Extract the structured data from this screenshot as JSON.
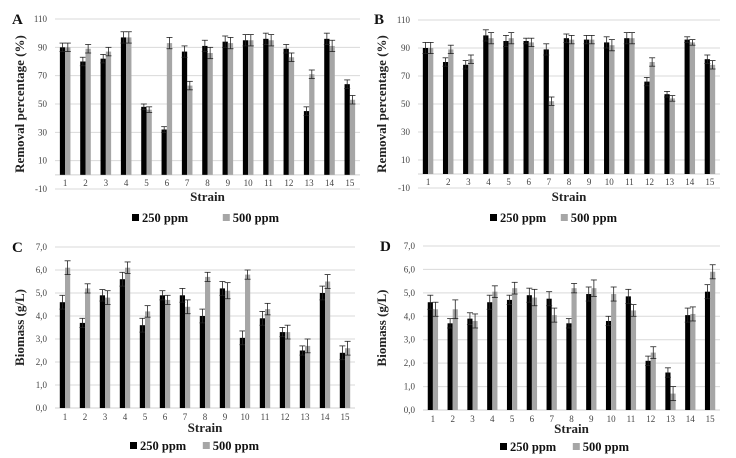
{
  "figure": {
    "legend": [
      {
        "name": "250 ppm",
        "color": "#000000"
      },
      {
        "name": "500 ppm",
        "color": "#a6a6a6"
      }
    ],
    "gridline_color": "#d9d9d9",
    "errorbar_color": "#222222"
  },
  "chart_data": [
    {
      "panel": "A",
      "type": "bar",
      "title": "",
      "xlabel": "Strain",
      "ylabel": "Removal percentage (%)",
      "ylim": [
        -10,
        110
      ],
      "yticks": [
        "-10",
        "10",
        "30",
        "50",
        "70",
        "90",
        "110"
      ],
      "grid": true,
      "legend_position": "bottom",
      "categories": [
        "1",
        "2",
        "3",
        "4",
        "5",
        "6",
        "7",
        "8",
        "9",
        "10",
        "11",
        "12",
        "13",
        "14",
        "15"
      ],
      "series": [
        {
          "name": "250 ppm",
          "values": [
            90,
            80,
            82,
            97,
            48,
            32,
            87,
            91,
            94,
            95,
            96,
            89,
            45,
            96,
            64
          ],
          "errors": [
            3,
            3,
            3,
            4,
            2,
            2,
            4,
            4,
            4,
            4,
            4,
            3,
            3,
            4,
            3
          ]
        },
        {
          "name": "500 ppm",
          "values": [
            90,
            89,
            87,
            97,
            46,
            93,
            63,
            86,
            93,
            95,
            95,
            83,
            71,
            91,
            53
          ],
          "errors": [
            3,
            3,
            3,
            4,
            2,
            4,
            3,
            4,
            4,
            4,
            4,
            3,
            3,
            4,
            3
          ]
        }
      ]
    },
    {
      "panel": "B",
      "type": "bar",
      "title": "",
      "xlabel": "Strain",
      "ylabel": "Removal percentage (%)",
      "ylim": [
        -10,
        110
      ],
      "yticks": [
        "-10",
        "10",
        "30",
        "50",
        "70",
        "90",
        "110"
      ],
      "grid": true,
      "legend_position": "bottom",
      "categories": [
        "1",
        "2",
        "3",
        "4",
        "5",
        "6",
        "7",
        "8",
        "9",
        "10",
        "11",
        "12",
        "13",
        "14",
        "15"
      ],
      "series": [
        {
          "name": "250 ppm",
          "values": [
            90,
            80,
            78,
            99,
            95,
            95,
            89,
            97,
            96,
            94,
            97,
            66,
            57,
            96,
            82
          ],
          "errors": [
            4,
            3,
            3,
            4,
            4,
            2,
            4,
            3,
            3,
            4,
            4,
            3,
            2,
            2,
            3
          ]
        },
        {
          "name": "500 ppm",
          "values": [
            90,
            89,
            82,
            97,
            97,
            94,
            52,
            96,
            96,
            92,
            97,
            80,
            54,
            94,
            78
          ],
          "errors": [
            4,
            3,
            3,
            4,
            4,
            3,
            3,
            3,
            3,
            4,
            4,
            3,
            2,
            2,
            3
          ]
        }
      ]
    },
    {
      "panel": "C",
      "type": "bar",
      "title": "",
      "xlabel": "Strain",
      "ylabel": "Biomass (g/L)",
      "ylim": [
        0,
        7
      ],
      "yticks": [
        "0,0",
        "1,0",
        "2,0",
        "3,0",
        "4,0",
        "5,0",
        "6,0",
        "7,0"
      ],
      "grid": true,
      "legend_position": "bottom",
      "categories": [
        "1",
        "2",
        "3",
        "4",
        "5",
        "6",
        "7",
        "8",
        "9",
        "10",
        "11",
        "12",
        "13",
        "14",
        "15"
      ],
      "series": [
        {
          "name": "250 ppm",
          "values": [
            4.6,
            3.7,
            4.9,
            5.6,
            3.6,
            4.9,
            4.9,
            4.0,
            5.2,
            3.05,
            3.9,
            3.3,
            2.5,
            5.0,
            2.4
          ],
          "errors": [
            0.3,
            0.2,
            0.25,
            0.3,
            0.3,
            0.2,
            0.3,
            0.3,
            0.3,
            0.3,
            0.3,
            0.2,
            0.2,
            0.3,
            0.3
          ]
        },
        {
          "name": "500 ppm",
          "values": [
            6.1,
            5.2,
            4.8,
            6.1,
            4.2,
            4.7,
            4.4,
            5.7,
            5.1,
            5.8,
            4.3,
            3.3,
            2.7,
            5.5,
            2.6
          ],
          "errors": [
            0.3,
            0.2,
            0.3,
            0.25,
            0.25,
            0.2,
            0.3,
            0.2,
            0.35,
            0.2,
            0.25,
            0.3,
            0.3,
            0.3,
            0.3
          ]
        }
      ]
    },
    {
      "panel": "D",
      "type": "bar",
      "title": "",
      "xlabel": "Strain",
      "ylabel": "Biomass (g/L)",
      "ylim": [
        0,
        7
      ],
      "yticks": [
        "0,0",
        "1,0",
        "2,0",
        "3,0",
        "4,0",
        "5,0",
        "6,0",
        "7,0"
      ],
      "grid": true,
      "legend_position": "bottom",
      "categories": [
        "1",
        "2",
        "3",
        "4",
        "5",
        "6",
        "7",
        "8",
        "9",
        "10",
        "11",
        "12",
        "13",
        "14",
        "15"
      ],
      "series": [
        {
          "name": "250 ppm",
          "values": [
            4.6,
            3.7,
            3.9,
            4.6,
            4.7,
            4.9,
            4.75,
            3.7,
            4.95,
            3.8,
            4.85,
            2.1,
            1.6,
            4.05,
            5.05
          ],
          "errors": [
            0.3,
            0.2,
            0.25,
            0.3,
            0.2,
            0.3,
            0.3,
            0.2,
            0.3,
            0.2,
            0.3,
            0.2,
            0.2,
            0.3,
            0.3
          ]
        },
        {
          "name": "500 ppm",
          "values": [
            4.3,
            4.3,
            3.8,
            5.05,
            5.2,
            4.8,
            4.05,
            5.2,
            5.2,
            4.95,
            4.25,
            2.45,
            0.7,
            4.1,
            5.9
          ],
          "errors": [
            0.3,
            0.4,
            0.3,
            0.25,
            0.25,
            0.35,
            0.3,
            0.2,
            0.35,
            0.3,
            0.25,
            0.25,
            0.3,
            0.3,
            0.3
          ]
        }
      ]
    }
  ]
}
